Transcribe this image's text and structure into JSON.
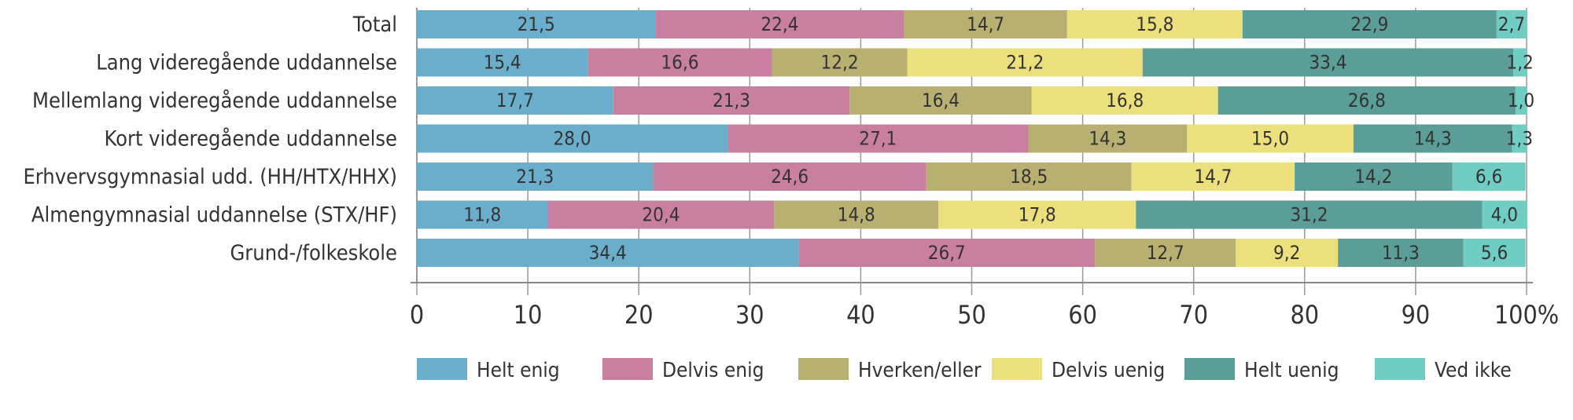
{
  "chart_data": {
    "type": "bar",
    "orientation": "horizontal",
    "stacked": true,
    "categories": [
      "Total",
      "Lang videregående uddannelse",
      "Mellemlang videregående uddannelse",
      "Kort videregående uddannelse",
      "Erhvervsgymnasial udd. (HH/HTX/HHX)",
      "Almengymnasial uddannelse (STX/HF)",
      "Grund-/folkeskole"
    ],
    "series": [
      {
        "name": "Helt enig",
        "color": "#6aaecb",
        "values": [
          21.5,
          15.4,
          17.7,
          28.0,
          21.3,
          11.8,
          34.4
        ],
        "labels": [
          "21,5",
          "15,4",
          "17,7",
          "28,0",
          "21,3",
          "11,8",
          "34,4"
        ]
      },
      {
        "name": "Delvis enig",
        "color": "#c97fa0",
        "values": [
          22.4,
          16.6,
          21.3,
          27.1,
          24.6,
          20.4,
          26.7
        ],
        "labels": [
          "22,4",
          "16,6",
          "21,3",
          "27,1",
          "24,6",
          "20,4",
          "26,7"
        ]
      },
      {
        "name": "Hverken/eller",
        "color": "#b8b070",
        "values": [
          14.7,
          12.2,
          16.4,
          14.3,
          18.5,
          14.8,
          12.7
        ],
        "labels": [
          "14,7",
          "12,2",
          "16,4",
          "14,3",
          "18,5",
          "14,8",
          "12,7"
        ]
      },
      {
        "name": "Delvis uenig",
        "color": "#ece07c",
        "values": [
          15.8,
          21.2,
          16.8,
          15.0,
          14.7,
          17.8,
          9.2
        ],
        "labels": [
          "15,8",
          "21,2",
          "16,8",
          "15,0",
          "14,7",
          "17,8",
          "9,2"
        ]
      },
      {
        "name": "Helt uenig",
        "color": "#5a9e97",
        "values": [
          22.9,
          33.4,
          26.8,
          14.3,
          14.2,
          31.2,
          11.3
        ],
        "labels": [
          "22,9",
          "33,4",
          "26,8",
          "14,3",
          "14,2",
          "31,2",
          "11,3"
        ]
      },
      {
        "name": "Ved ikke",
        "color": "#6fcdc4",
        "values": [
          2.7,
          1.2,
          1.0,
          1.3,
          6.6,
          4.0,
          5.6
        ],
        "labels": [
          "2,7",
          "1,2",
          "1,0",
          "1,3",
          "6,6",
          "4,0",
          "5,6"
        ]
      }
    ],
    "xlim": [
      0,
      100
    ],
    "xticks": [
      "0",
      "10",
      "20",
      "30",
      "40",
      "50",
      "60",
      "70",
      "80",
      "90",
      "100%"
    ],
    "grid": true,
    "legend_position": "bottom",
    "title": "",
    "xlabel": "",
    "ylabel": ""
  }
}
